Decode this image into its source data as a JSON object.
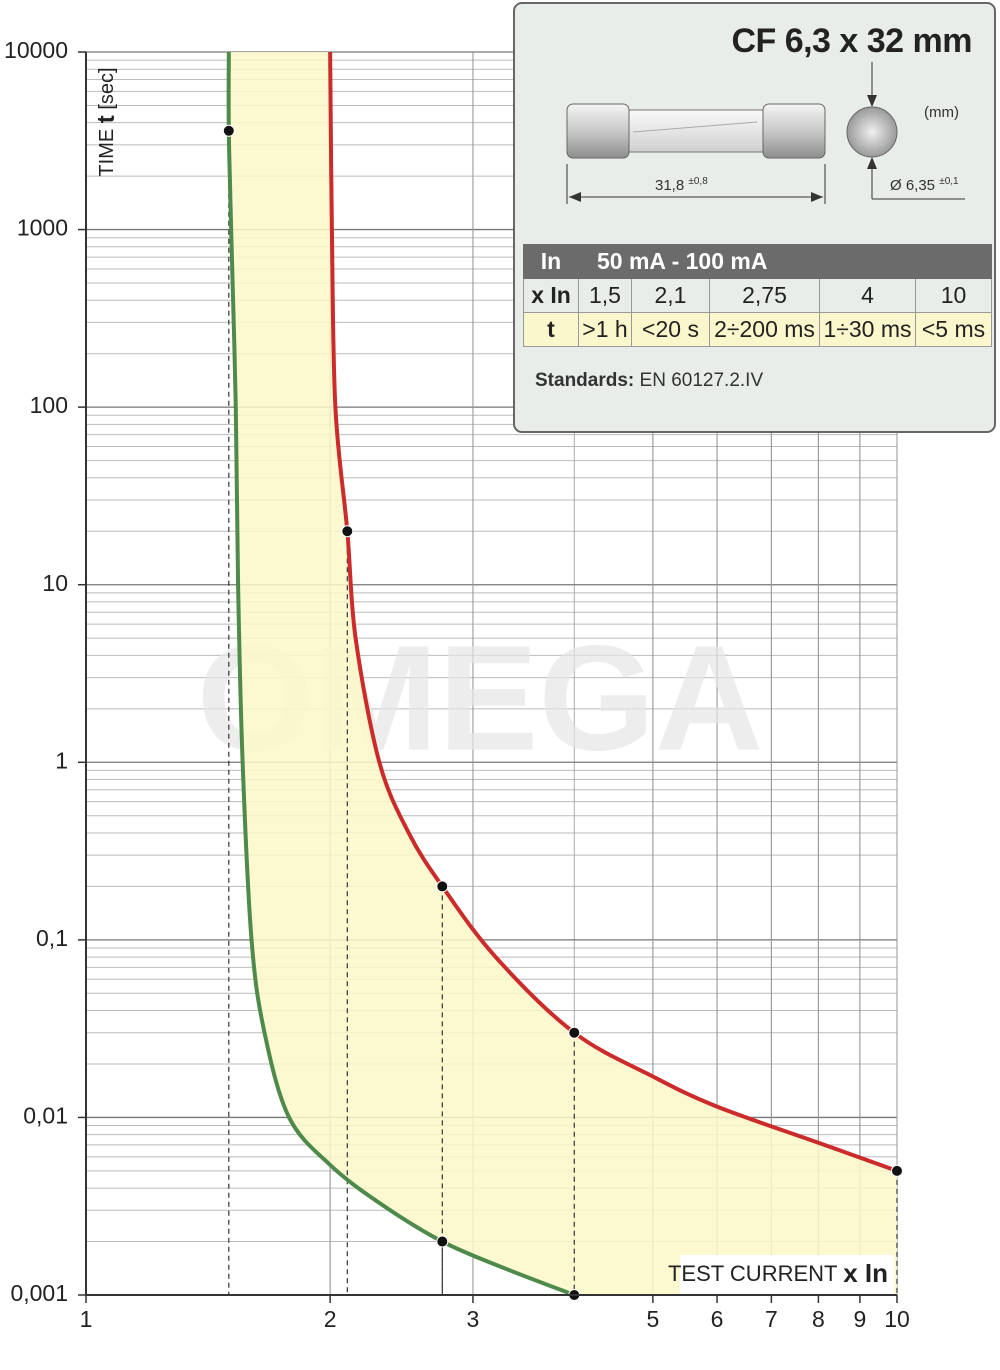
{
  "chart_data": {
    "type": "line",
    "log_x": true,
    "log_y": true,
    "grid": true,
    "watermark": "OMEGA",
    "ylabel": {
      "prefix": "TIME",
      "symbol": "t",
      "unit": "[sec]"
    },
    "xlabel": {
      "text": "TEST CURRENT",
      "symbol": "x In"
    },
    "xlim": [
      1,
      10
    ],
    "xticks": [
      1,
      2,
      3,
      5,
      6,
      7,
      8,
      9,
      10
    ],
    "ylim": [
      0.001,
      10000
    ],
    "yticks": [
      10000,
      1000,
      100,
      10,
      1,
      {
        "value": 0.1,
        "label": "0,1"
      },
      {
        "value": 0.01,
        "label": "0,01"
      },
      {
        "value": 0.001,
        "label": "0,001"
      }
    ],
    "fill_color": "#fbf7c8",
    "series": [
      {
        "color": "#4e8a4a",
        "x": [
          1.5,
          1.5,
          1.51,
          1.53,
          1.54,
          1.56,
          1.6,
          1.66,
          1.78,
          2.0,
          2.3,
          2.75,
          3.3,
          4
        ],
        "values": [
          10000,
          3600,
          1000,
          100,
          10,
          1,
          0.1,
          0.03,
          0.01,
          0.0054,
          0.0033,
          0.002,
          0.0014,
          0.001
        ],
        "markers": [
          {
            "x": 1.5,
            "y": 3600
          },
          {
            "x": 2.75,
            "y": 0.002
          },
          {
            "x": 4,
            "y": 0.001
          }
        ]
      },
      {
        "color": "#cc2b2b",
        "x": [
          2,
          2.01,
          2.03,
          2.1,
          2.15,
          2.3,
          2.5,
          2.75,
          3.2,
          4,
          5,
          6,
          8,
          10
        ],
        "values": [
          10000,
          1000,
          100,
          20,
          5,
          1,
          0.4,
          0.2,
          0.08,
          0.03,
          0.017,
          0.0115,
          0.0072,
          0.005
        ],
        "markers": [
          {
            "x": 2.1,
            "y": 20
          },
          {
            "x": 2.75,
            "y": 0.2
          },
          {
            "x": 4,
            "y": 0.03
          },
          {
            "x": 10,
            "y": 0.005
          }
        ]
      }
    ]
  },
  "info_box": {
    "title": "CF 6,3 x 32 mm",
    "length": "31,8",
    "length_tol": "±0,8",
    "unit": "(mm)",
    "diameter": "Ø 6,35",
    "diameter_tol": "±0,1",
    "table": {
      "header": [
        "In",
        "50 mA - 100 mA"
      ],
      "rows": [
        [
          "x In",
          "1,5",
          "2,1",
          "2,75",
          "4",
          "10"
        ],
        [
          "t",
          ">1 h",
          "<20 s",
          "2÷200 ms",
          "1÷30 ms",
          "<5 ms"
        ]
      ]
    },
    "standards_label": "Standards:",
    "standards": "EN 60127.2.IV"
  }
}
